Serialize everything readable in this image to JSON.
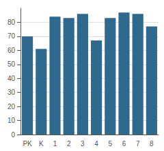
{
  "chart_data": {
    "type": "bar",
    "categories": [
      "PK",
      "K",
      "1",
      "2",
      "3",
      "4",
      "5",
      "6",
      "7",
      "8"
    ],
    "values": [
      70,
      61,
      84,
      83,
      86,
      67,
      83,
      87,
      86,
      77
    ],
    "color": "#2e6a8e",
    "ylim": [
      0,
      90
    ],
    "yticks": [
      0,
      10,
      20,
      30,
      40,
      50,
      60,
      70,
      80
    ],
    "grid": true
  }
}
